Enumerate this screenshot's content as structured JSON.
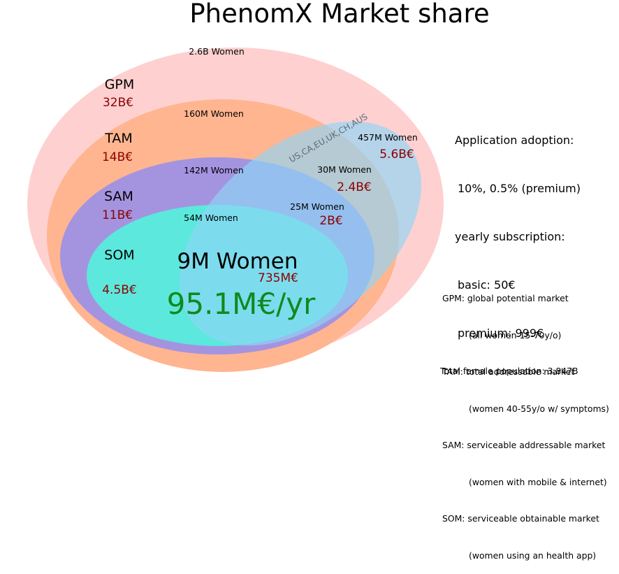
{
  "title": "PhenomX Market share",
  "colors": {
    "gpm": "#ffd0d0",
    "tam": "#ffb590",
    "sam": "#a494e0",
    "som": "#5ce8dc",
    "region": "#8ed6f6",
    "money": "#8b0000",
    "revenue": "#0e8a1e"
  },
  "circles": {
    "gpm": {
      "label": "GPM",
      "value": "32B€",
      "women": "2.6B Women"
    },
    "tam": {
      "label": "TAM",
      "value": "14B€",
      "women": "160M Women"
    },
    "sam": {
      "label": "SAM",
      "value": "11B€",
      "women": "142M Women"
    },
    "som": {
      "label": "SOM",
      "value": "4.5B€",
      "women": "54M Women"
    }
  },
  "region": {
    "label": "US,CA,EU,UK,CH,AUS",
    "gpm_women": "457M Women",
    "gpm_value": "5.6B€",
    "tam_women": "30M Women",
    "tam_value": "2.4B€",
    "sam_women": "25M Women",
    "sam_value": "2B€",
    "som_women": "9M Women",
    "som_value": "735M€",
    "revenue": "95.1M€/yr"
  },
  "adoption": {
    "line1": "Application adoption:",
    "line2": "10%, 0.5% (premium)",
    "line3": "yearly subscription:",
    "line4": "basic: 50€",
    "line5": "premium: 999€"
  },
  "legend": [
    {
      "term": "GPM: global potential market",
      "desc": "(all women 15-70y/o)"
    },
    {
      "term": "TAM: total addressable market",
      "desc": "(women 40-55y/o w/ symptoms)"
    },
    {
      "term": "SAM: serviceable addressable market",
      "desc": "(women with mobile & internet)"
    },
    {
      "term": "SOM: serviceable obtainable market",
      "desc": "(women using an health app)"
    }
  ],
  "total": "Total female population: 3.847B"
}
